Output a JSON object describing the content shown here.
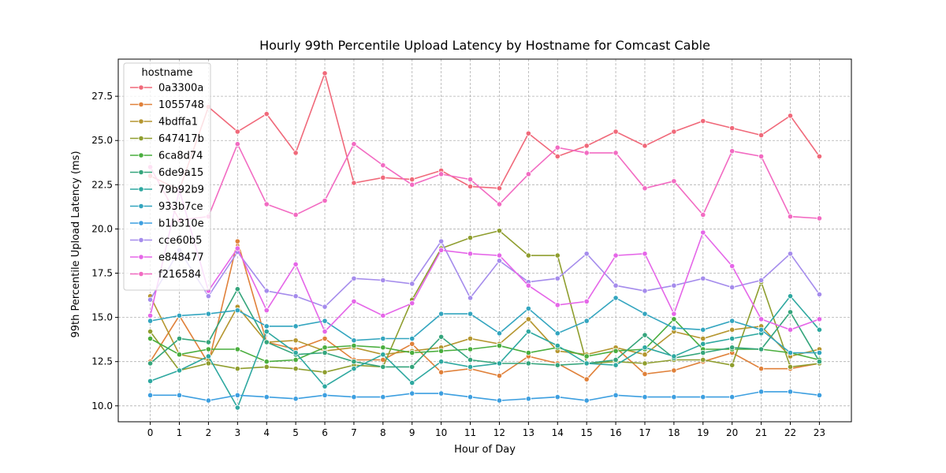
{
  "chart_data": {
    "type": "line",
    "title": "Hourly 99th Percentile Upload Latency by Hostname for Comcast Cable",
    "xlabel": "Hour of Day",
    "ylabel": "99th Percentile Upload Latency (ms)",
    "x": [
      0,
      1,
      2,
      3,
      4,
      5,
      6,
      7,
      8,
      9,
      10,
      11,
      12,
      13,
      14,
      15,
      16,
      17,
      18,
      19,
      20,
      21,
      22,
      23
    ],
    "xlim": [
      -1.1,
      24.1
    ],
    "ylim": [
      9.1,
      29.6
    ],
    "yticks": [
      10.0,
      12.5,
      15.0,
      17.5,
      20.0,
      22.5,
      25.0,
      27.5
    ],
    "ytick_labels": [
      "10.0",
      "12.5",
      "15.0",
      "17.5",
      "20.0",
      "22.5",
      "25.0",
      "27.5"
    ],
    "grid": true,
    "legend": {
      "title": "hostname",
      "placement": "top-left"
    },
    "series": [
      {
        "name": "0a3300a",
        "color": "#f0697a",
        "values": [
          23.0,
          22.2,
          26.9,
          25.5,
          26.5,
          24.3,
          28.8,
          22.6,
          22.9,
          22.8,
          23.3,
          22.4,
          22.3,
          25.4,
          24.1,
          24.7,
          25.5,
          24.7,
          25.5,
          26.1,
          25.7,
          25.3,
          26.4,
          24.1
        ]
      },
      {
        "name": "1055748",
        "color": "#e0813a",
        "values": [
          12.5,
          15.1,
          12.4,
          19.3,
          13.6,
          13.2,
          13.8,
          12.6,
          12.6,
          13.5,
          11.9,
          12.1,
          11.7,
          12.8,
          12.4,
          11.5,
          13.3,
          11.8,
          12.0,
          12.5,
          13.0,
          12.1,
          12.1,
          12.4
        ]
      },
      {
        "name": "4bdffa1",
        "color": "#b59630",
        "values": [
          16.2,
          12.9,
          12.6,
          15.6,
          13.6,
          13.7,
          13.1,
          13.3,
          12.9,
          13.1,
          13.3,
          13.8,
          13.5,
          14.9,
          13.1,
          12.9,
          13.3,
          12.9,
          14.2,
          13.8,
          14.3,
          14.5,
          12.8,
          13.2
        ]
      },
      {
        "name": "647417b",
        "color": "#8f9e2f",
        "values": [
          14.2,
          12.0,
          12.4,
          12.1,
          12.2,
          12.1,
          11.9,
          12.3,
          12.2,
          16.0,
          18.9,
          19.5,
          19.9,
          18.5,
          18.5,
          12.4,
          12.5,
          12.4,
          12.6,
          12.6,
          12.3,
          17.0,
          12.2,
          12.4
        ]
      },
      {
        "name": "6ca8d74",
        "color": "#4aae3e",
        "values": [
          13.8,
          12.9,
          13.2,
          13.2,
          12.5,
          12.6,
          13.3,
          13.4,
          13.3,
          13.0,
          13.1,
          13.2,
          13.4,
          13.0,
          13.3,
          12.8,
          13.1,
          13.2,
          14.9,
          13.2,
          13.2,
          13.2,
          13.0,
          12.6
        ]
      },
      {
        "name": "6de9a15",
        "color": "#35a57c",
        "values": [
          12.4,
          13.8,
          13.6,
          16.6,
          13.6,
          12.9,
          13.0,
          12.5,
          12.2,
          12.2,
          13.9,
          12.6,
          12.4,
          12.4,
          12.3,
          12.4,
          12.6,
          14.0,
          12.7,
          13.0,
          13.3,
          13.2,
          15.3,
          12.5
        ]
      },
      {
        "name": "79b92b9",
        "color": "#2ea8a0",
        "values": [
          11.4,
          12.0,
          12.8,
          9.9,
          14.2,
          13.0,
          11.1,
          12.1,
          12.9,
          11.3,
          12.5,
          12.2,
          12.4,
          14.2,
          13.4,
          12.4,
          12.3,
          13.3,
          12.8,
          13.5,
          13.8,
          14.1,
          16.2,
          14.3
        ]
      },
      {
        "name": "933b7ce",
        "color": "#33a5bf",
        "values": [
          14.8,
          15.1,
          15.2,
          15.4,
          14.5,
          14.5,
          14.8,
          13.7,
          13.8,
          13.8,
          15.2,
          15.2,
          14.1,
          15.5,
          14.1,
          14.8,
          16.1,
          15.2,
          14.4,
          14.3,
          14.8,
          14.3,
          13.0,
          13.0
        ]
      },
      {
        "name": "b1b310e",
        "color": "#3d9fe0",
        "values": [
          10.6,
          10.6,
          10.3,
          10.6,
          10.5,
          10.4,
          10.6,
          10.5,
          10.5,
          10.7,
          10.7,
          10.5,
          10.3,
          10.4,
          10.5,
          10.3,
          10.6,
          10.5,
          10.5,
          10.5,
          10.5,
          10.8,
          10.8,
          10.6
        ]
      },
      {
        "name": "cce60b5",
        "color": "#a58cec",
        "values": [
          16.0,
          18.8,
          16.2,
          18.7,
          16.5,
          16.2,
          15.6,
          17.2,
          17.1,
          16.9,
          19.3,
          16.1,
          18.2,
          17.0,
          17.2,
          18.6,
          16.8,
          16.5,
          16.8,
          17.2,
          16.7,
          17.1,
          18.6,
          16.3
        ]
      },
      {
        "name": "e848477",
        "color": "#e566e8",
        "values": [
          15.1,
          22.2,
          16.5,
          18.9,
          15.4,
          18.0,
          14.2,
          15.9,
          15.1,
          15.8,
          18.8,
          18.6,
          18.5,
          16.8,
          15.7,
          15.9,
          18.5,
          18.6,
          15.2,
          19.8,
          17.9,
          14.9,
          14.3,
          14.9
        ]
      },
      {
        "name": "f216584",
        "color": "#f26bc2",
        "values": [
          23.5,
          20.5,
          20.7,
          24.8,
          21.4,
          20.8,
          21.6,
          24.8,
          23.6,
          22.5,
          23.1,
          22.8,
          21.4,
          23.1,
          24.6,
          24.3,
          24.3,
          22.3,
          22.7,
          20.8,
          24.4,
          24.1,
          20.7,
          20.6
        ]
      }
    ]
  }
}
